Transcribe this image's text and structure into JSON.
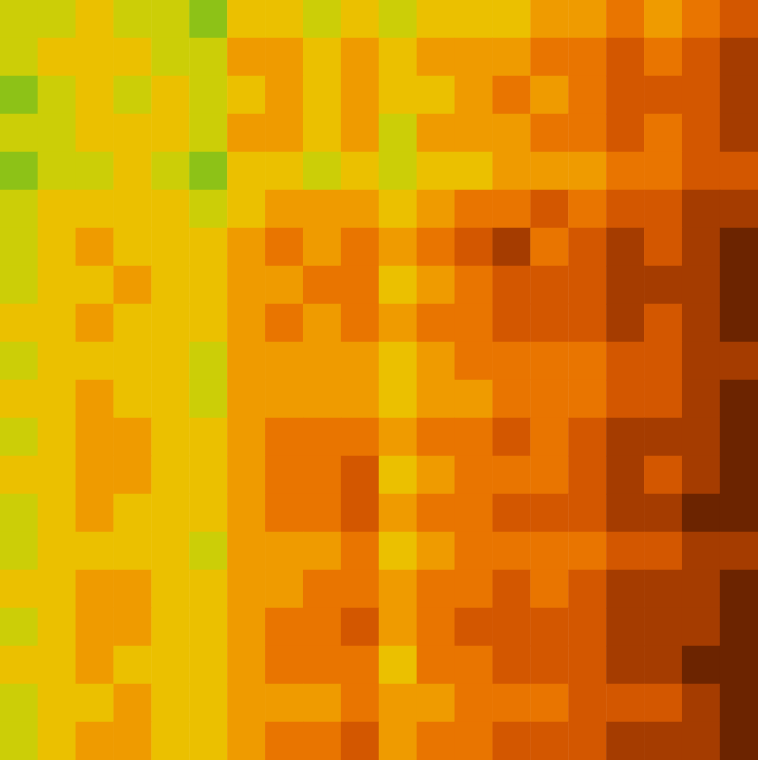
{
  "chart_data": {
    "type": "heatmap",
    "tick_labels": false,
    "color_range": [
      0,
      9
    ],
    "cells": [
      [
        2,
        2,
        3,
        2,
        2,
        1,
        3,
        3,
        2,
        3,
        2,
        3,
        3,
        3,
        4,
        4,
        5,
        4,
        5,
        6
      ],
      [
        2,
        3,
        3,
        3,
        2,
        2,
        4,
        4,
        3,
        4,
        3,
        4,
        4,
        4,
        5,
        5,
        6,
        5,
        6,
        7
      ],
      [
        1,
        2,
        3,
        2,
        3,
        2,
        3,
        4,
        3,
        4,
        3,
        3,
        4,
        5,
        4,
        5,
        6,
        6,
        6,
        7
      ],
      [
        2,
        2,
        3,
        3,
        3,
        2,
        4,
        4,
        3,
        4,
        2,
        4,
        4,
        4,
        5,
        5,
        6,
        5,
        6,
        7
      ],
      [
        1,
        2,
        2,
        3,
        2,
        1,
        3,
        3,
        2,
        3,
        2,
        3,
        3,
        4,
        4,
        4,
        5,
        5,
        6,
        6
      ],
      [
        2,
        3,
        3,
        3,
        3,
        2,
        3,
        4,
        4,
        4,
        3,
        4,
        5,
        5,
        6,
        5,
        6,
        6,
        7,
        7
      ],
      [
        2,
        3,
        4,
        3,
        3,
        3,
        4,
        5,
        4,
        5,
        4,
        5,
        6,
        7,
        5,
        6,
        7,
        6,
        7,
        8
      ],
      [
        2,
        3,
        3,
        4,
        3,
        3,
        4,
        4,
        5,
        5,
        3,
        4,
        5,
        6,
        6,
        6,
        7,
        7,
        7,
        8
      ],
      [
        3,
        3,
        4,
        3,
        3,
        3,
        4,
        5,
        4,
        5,
        4,
        5,
        5,
        6,
        6,
        6,
        7,
        6,
        7,
        8
      ],
      [
        2,
        3,
        3,
        3,
        3,
        2,
        4,
        4,
        4,
        4,
        3,
        4,
        5,
        5,
        5,
        5,
        6,
        6,
        7,
        7
      ],
      [
        3,
        3,
        4,
        3,
        3,
        2,
        4,
        4,
        4,
        4,
        3,
        4,
        4,
        5,
        5,
        5,
        6,
        6,
        7,
        8
      ],
      [
        2,
        3,
        4,
        4,
        3,
        3,
        4,
        5,
        5,
        5,
        4,
        5,
        5,
        6,
        5,
        6,
        7,
        7,
        7,
        8
      ],
      [
        3,
        3,
        4,
        4,
        3,
        3,
        4,
        5,
        5,
        6,
        3,
        4,
        5,
        5,
        5,
        6,
        7,
        6,
        7,
        8
      ],
      [
        2,
        3,
        4,
        3,
        3,
        3,
        4,
        5,
        5,
        6,
        4,
        5,
        5,
        6,
        6,
        6,
        7,
        7,
        8,
        8
      ],
      [
        2,
        3,
        3,
        3,
        3,
        2,
        4,
        4,
        4,
        5,
        3,
        4,
        5,
        5,
        5,
        5,
        6,
        6,
        7,
        7
      ],
      [
        3,
        3,
        4,
        4,
        3,
        3,
        4,
        4,
        5,
        5,
        4,
        5,
        5,
        6,
        5,
        6,
        7,
        7,
        7,
        8
      ],
      [
        2,
        3,
        4,
        4,
        3,
        3,
        4,
        5,
        5,
        6,
        4,
        5,
        6,
        6,
        6,
        6,
        7,
        7,
        7,
        8
      ],
      [
        3,
        3,
        4,
        3,
        3,
        3,
        4,
        5,
        5,
        5,
        3,
        5,
        5,
        6,
        6,
        6,
        7,
        7,
        8,
        8
      ],
      [
        2,
        3,
        3,
        4,
        3,
        3,
        4,
        4,
        4,
        5,
        4,
        4,
        5,
        5,
        5,
        6,
        6,
        6,
        7,
        8
      ],
      [
        2,
        3,
        4,
        4,
        3,
        3,
        4,
        5,
        5,
        6,
        4,
        5,
        5,
        6,
        6,
        6,
        7,
        7,
        7,
        8
      ]
    ]
  }
}
